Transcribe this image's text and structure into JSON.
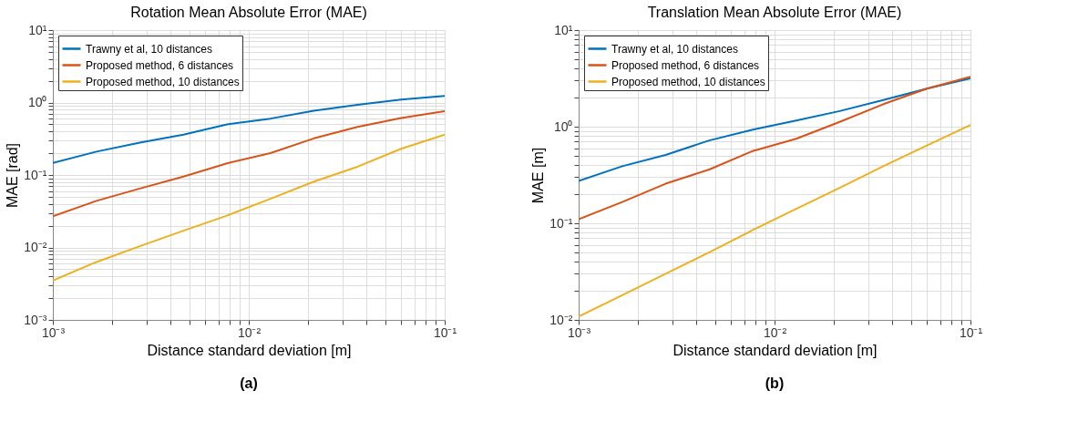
{
  "chart_data": [
    {
      "type": "line",
      "title": "Rotation Mean Absolute Error (MAE)",
      "xlabel": "Distance standard deviation [m]",
      "ylabel": "MAE [rad]",
      "log": "xy",
      "grid": true,
      "legend": "top left",
      "line_style": "solid",
      "marker": "none",
      "x": [
        0.001,
        0.00167,
        0.00278,
        0.00464,
        0.00774,
        0.0129,
        0.0215,
        0.0359,
        0.0599,
        0.1
      ],
      "series": [
        {
          "name": "Trawny et al, 10 distances",
          "color": "#0072bd",
          "values": [
            0.147,
            0.21,
            0.28,
            0.36,
            0.5,
            0.6,
            0.77,
            0.93,
            1.1,
            1.23
          ]
        },
        {
          "name": "Proposed method, 6 distances",
          "color": "#d95319",
          "values": [
            0.027,
            0.044,
            0.065,
            0.095,
            0.145,
            0.2,
            0.32,
            0.46,
            0.61,
            0.76
          ]
        },
        {
          "name": "Proposed method, 10 distances",
          "color": "#edb120",
          "values": [
            0.0035,
            0.0063,
            0.0104,
            0.017,
            0.0275,
            0.047,
            0.081,
            0.13,
            0.23,
            0.36
          ]
        }
      ],
      "xlim": [
        0.001,
        0.1
      ],
      "ylim": [
        0.001,
        10
      ],
      "xticks": [
        {
          "value": 0.001,
          "label": "10⁻³"
        },
        {
          "value": 0.002,
          "label": null
        },
        {
          "value": 0.003,
          "label": null
        },
        {
          "value": 0.004,
          "label": null
        },
        {
          "value": 0.005,
          "label": null
        },
        {
          "value": 0.006,
          "label": null
        },
        {
          "value": 0.007,
          "label": null
        },
        {
          "value": 0.008,
          "label": null
        },
        {
          "value": 0.009,
          "label": null
        },
        {
          "value": 0.01,
          "label": "10⁻²"
        },
        {
          "value": 0.02,
          "label": null
        },
        {
          "value": 0.03,
          "label": null
        },
        {
          "value": 0.04,
          "label": null
        },
        {
          "value": 0.05,
          "label": null
        },
        {
          "value": 0.06,
          "label": null
        },
        {
          "value": 0.07,
          "label": null
        },
        {
          "value": 0.08,
          "label": null
        },
        {
          "value": 0.09,
          "label": null
        },
        {
          "value": 0.1,
          "label": "10⁻¹"
        }
      ],
      "yticks": [
        {
          "value": 0.001,
          "label": "10⁻³"
        },
        {
          "value": 0.002,
          "label": null
        },
        {
          "value": 0.003,
          "label": null
        },
        {
          "value": 0.004,
          "label": null
        },
        {
          "value": 0.005,
          "label": null
        },
        {
          "value": 0.006,
          "label": null
        },
        {
          "value": 0.007,
          "label": null
        },
        {
          "value": 0.008,
          "label": null
        },
        {
          "value": 0.009,
          "label": null
        },
        {
          "value": 0.01,
          "label": "10⁻²"
        },
        {
          "value": 0.02,
          "label": null
        },
        {
          "value": 0.03,
          "label": null
        },
        {
          "value": 0.04,
          "label": null
        },
        {
          "value": 0.05,
          "label": null
        },
        {
          "value": 0.06,
          "label": null
        },
        {
          "value": 0.07,
          "label": null
        },
        {
          "value": 0.08,
          "label": null
        },
        {
          "value": 0.09,
          "label": null
        },
        {
          "value": 0.1,
          "label": "10⁻¹"
        },
        {
          "value": 0.2,
          "label": null
        },
        {
          "value": 0.3,
          "label": null
        },
        {
          "value": 0.4,
          "label": null
        },
        {
          "value": 0.5,
          "label": null
        },
        {
          "value": 0.6,
          "label": null
        },
        {
          "value": 0.7,
          "label": null
        },
        {
          "value": 0.8,
          "label": null
        },
        {
          "value": 0.9,
          "label": null
        },
        {
          "value": 1,
          "label": "10⁰"
        },
        {
          "value": 2,
          "label": null
        },
        {
          "value": 3,
          "label": null
        },
        {
          "value": 4,
          "label": null
        },
        {
          "value": 5,
          "label": null
        },
        {
          "value": 6,
          "label": null
        },
        {
          "value": 7,
          "label": null
        },
        {
          "value": 8,
          "label": null
        },
        {
          "value": 9,
          "label": null
        },
        {
          "value": 10,
          "label": "10¹"
        }
      ],
      "annotations": [
        "(a)"
      ]
    },
    {
      "type": "line",
      "title": "Translation Mean Absolute Error (MAE)",
      "xlabel": "Distance standard deviation [m]",
      "ylabel": "MAE [m]",
      "log": "xy",
      "grid": true,
      "legend": "top left",
      "line_style": "solid",
      "marker": "none",
      "x": [
        0.001,
        0.00167,
        0.00278,
        0.00464,
        0.00774,
        0.0129,
        0.0215,
        0.0359,
        0.0599,
        0.1
      ],
      "series": [
        {
          "name": "Trawny et al, 10 distances",
          "color": "#0072bd",
          "values": [
            0.275,
            0.39,
            0.51,
            0.72,
            0.93,
            1.16,
            1.45,
            1.89,
            2.48,
            3.16
          ]
        },
        {
          "name": "Proposed method, 6 distances",
          "color": "#d95319",
          "values": [
            0.11,
            0.166,
            0.257,
            0.36,
            0.56,
            0.75,
            1.12,
            1.71,
            2.48,
            3.29
          ]
        },
        {
          "name": "Proposed method, 10 distances",
          "color": "#edb120",
          "values": [
            0.0108,
            0.018,
            0.03,
            0.05,
            0.085,
            0.141,
            0.233,
            0.39,
            0.64,
            1.04
          ]
        }
      ],
      "xlim": [
        0.001,
        0.1
      ],
      "ylim": [
        0.01,
        10
      ],
      "xticks": [
        {
          "value": 0.001,
          "label": "10⁻³"
        },
        {
          "value": 0.002,
          "label": null
        },
        {
          "value": 0.003,
          "label": null
        },
        {
          "value": 0.004,
          "label": null
        },
        {
          "value": 0.005,
          "label": null
        },
        {
          "value": 0.006,
          "label": null
        },
        {
          "value": 0.007,
          "label": null
        },
        {
          "value": 0.008,
          "label": null
        },
        {
          "value": 0.009,
          "label": null
        },
        {
          "value": 0.01,
          "label": "10⁻²"
        },
        {
          "value": 0.02,
          "label": null
        },
        {
          "value": 0.03,
          "label": null
        },
        {
          "value": 0.04,
          "label": null
        },
        {
          "value": 0.05,
          "label": null
        },
        {
          "value": 0.06,
          "label": null
        },
        {
          "value": 0.07,
          "label": null
        },
        {
          "value": 0.08,
          "label": null
        },
        {
          "value": 0.09,
          "label": null
        },
        {
          "value": 0.1,
          "label": "10⁻¹"
        }
      ],
      "yticks": [
        {
          "value": 0.01,
          "label": "10⁻²"
        },
        {
          "value": 0.02,
          "label": null
        },
        {
          "value": 0.03,
          "label": null
        },
        {
          "value": 0.04,
          "label": null
        },
        {
          "value": 0.05,
          "label": null
        },
        {
          "value": 0.06,
          "label": null
        },
        {
          "value": 0.07,
          "label": null
        },
        {
          "value": 0.08,
          "label": null
        },
        {
          "value": 0.09,
          "label": null
        },
        {
          "value": 0.1,
          "label": "10⁻¹"
        },
        {
          "value": 0.2,
          "label": null
        },
        {
          "value": 0.3,
          "label": null
        },
        {
          "value": 0.4,
          "label": null
        },
        {
          "value": 0.5,
          "label": null
        },
        {
          "value": 0.6,
          "label": null
        },
        {
          "value": 0.7,
          "label": null
        },
        {
          "value": 0.8,
          "label": null
        },
        {
          "value": 0.9,
          "label": null
        },
        {
          "value": 1,
          "label": "10⁰"
        },
        {
          "value": 2,
          "label": null
        },
        {
          "value": 3,
          "label": null
        },
        {
          "value": 4,
          "label": null
        },
        {
          "value": 5,
          "label": null
        },
        {
          "value": 6,
          "label": null
        },
        {
          "value": 7,
          "label": null
        },
        {
          "value": 8,
          "label": null
        },
        {
          "value": 9,
          "label": null
        },
        {
          "value": 10,
          "label": "10¹"
        }
      ],
      "annotations": [
        "(b)"
      ]
    }
  ]
}
